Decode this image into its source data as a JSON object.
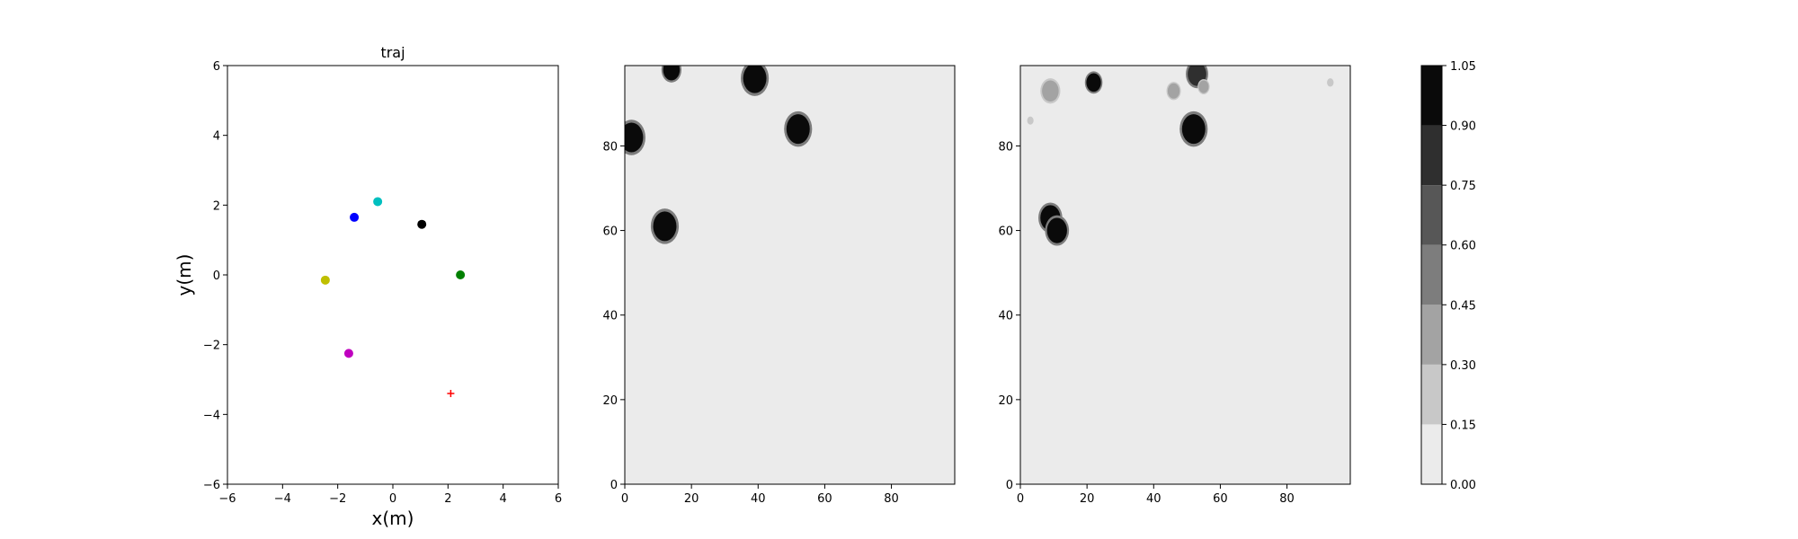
{
  "chart_data": [
    {
      "type": "scatter",
      "title": "traj",
      "xlabel": "x(m)",
      "ylabel": "y(m)",
      "xlim": [
        -6,
        6
      ],
      "ylim": [
        -6,
        6
      ],
      "xticks": [
        "−6",
        "−4",
        "−2",
        "0",
        "2",
        "4",
        "6"
      ],
      "yticks": [
        "−6",
        "−4",
        "−2",
        "0",
        "2",
        "4",
        "6"
      ],
      "grid": false,
      "points": [
        {
          "x": -1.4,
          "y": 1.65,
          "color": "#0000ff",
          "marker": "circle"
        },
        {
          "x": -0.55,
          "y": 2.1,
          "color": "#00bfbf",
          "marker": "circle"
        },
        {
          "x": 1.05,
          "y": 1.45,
          "color": "#000000",
          "marker": "circle"
        },
        {
          "x": -2.45,
          "y": -0.15,
          "color": "#bfbf00",
          "marker": "circle"
        },
        {
          "x": 2.45,
          "y": 0.0,
          "color": "#008000",
          "marker": "circle"
        },
        {
          "x": -1.6,
          "y": -2.25,
          "color": "#bf00bf",
          "marker": "circle"
        },
        {
          "x": 2.1,
          "y": -3.4,
          "color": "#ff0000",
          "marker": "plus"
        }
      ]
    },
    {
      "type": "heatmap",
      "xlim": [
        0,
        99
      ],
      "ylim": [
        0,
        99
      ],
      "xticks": [
        "0",
        "20",
        "40",
        "60",
        "80"
      ],
      "yticks": [
        "0",
        "20",
        "40",
        "60",
        "80"
      ],
      "background_level": 0.05,
      "blobs": [
        {
          "x": 2,
          "y": 82,
          "r": 3.5,
          "level": 1.0
        },
        {
          "x": 14,
          "y": 98,
          "r": 2.5,
          "level": 1.0
        },
        {
          "x": 39,
          "y": 96,
          "r": 3.5,
          "level": 1.0
        },
        {
          "x": 52,
          "y": 84,
          "r": 3.5,
          "level": 1.0
        },
        {
          "x": 12,
          "y": 61,
          "r": 3.5,
          "level": 1.0
        }
      ]
    },
    {
      "type": "heatmap",
      "xlim": [
        0,
        99
      ],
      "ylim": [
        0,
        99
      ],
      "xticks": [
        "0",
        "20",
        "40",
        "60",
        "80"
      ],
      "yticks": [
        "0",
        "20",
        "40",
        "60",
        "80"
      ],
      "background_level": 0.05,
      "blobs": [
        {
          "x": 9,
          "y": 93,
          "r": 2.5,
          "level": 0.35
        },
        {
          "x": 3,
          "y": 86,
          "r": 0.8,
          "level": 0.3
        },
        {
          "x": 22,
          "y": 95,
          "r": 2.2,
          "level": 0.95
        },
        {
          "x": 46,
          "y": 93,
          "r": 1.8,
          "level": 0.4
        },
        {
          "x": 53,
          "y": 97,
          "r": 2.8,
          "level": 0.9
        },
        {
          "x": 55,
          "y": 94,
          "r": 1.5,
          "level": 0.45
        },
        {
          "x": 52,
          "y": 84,
          "r": 3.5,
          "level": 1.0
        },
        {
          "x": 9,
          "y": 63,
          "r": 3.0,
          "level": 1.0
        },
        {
          "x": 11,
          "y": 60,
          "r": 3.0,
          "level": 1.0
        },
        {
          "x": 93,
          "y": 95,
          "r": 1.0,
          "level": 0.25
        }
      ]
    },
    {
      "type": "colorbar",
      "levels": [
        0.0,
        0.15,
        0.3,
        0.45,
        0.6,
        0.75,
        0.9,
        1.05
      ],
      "tick_labels": [
        "0.00",
        "0.15",
        "0.30",
        "0.45",
        "0.60",
        "0.75",
        "0.90",
        "1.05"
      ],
      "colors": [
        "#ebebeb",
        "#c8c8c8",
        "#a3a3a3",
        "#7d7d7d",
        "#575757",
        "#2f2f2f",
        "#0a0a0a"
      ]
    }
  ]
}
